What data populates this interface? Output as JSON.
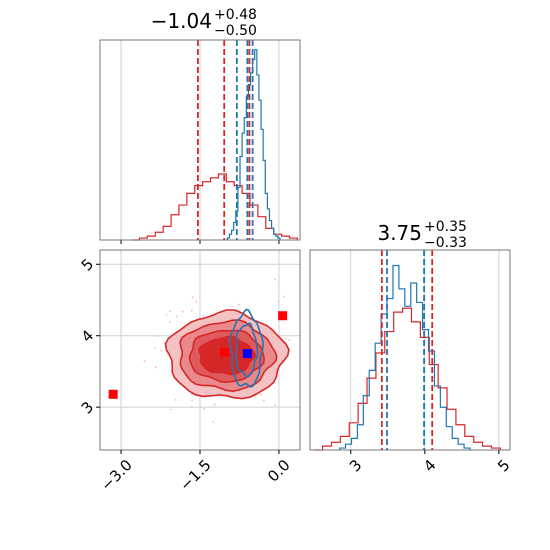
{
  "chart_data": [
    {
      "panel": "marginal-a",
      "type": "histogram",
      "title": {
        "median": "−1.04",
        "plus": "+0.48",
        "minus": "−0.50"
      },
      "grid": true,
      "series": [
        {
          "color": "#1f77b4",
          "bins": [
            -0.98,
            -0.94,
            -0.9,
            -0.86,
            -0.82,
            -0.78,
            -0.74,
            -0.7,
            -0.66,
            -0.62,
            -0.58,
            -0.54,
            -0.5,
            -0.46,
            -0.42,
            -0.38,
            -0.34,
            -0.3,
            -0.26,
            -0.22,
            -0.18,
            -0.14,
            -0.1,
            -0.06,
            -0.02,
            0.02
          ],
          "counts": [
            0.01,
            0.03,
            0.05,
            0.09,
            0.15,
            0.27,
            0.43,
            0.55,
            0.63,
            0.74,
            0.8,
            0.86,
            0.93,
            0.98,
            0.85,
            0.72,
            0.57,
            0.41,
            0.24,
            0.16,
            0.1,
            0.06,
            0.03,
            0.02,
            0.01
          ],
          "quantile_lines": [
            -0.8,
            -0.6,
            -0.5
          ]
        },
        {
          "color": "#d62728",
          "bins": [
            -2.8,
            -2.65,
            -2.5,
            -2.35,
            -2.2,
            -2.05,
            -1.9,
            -1.75,
            -1.6,
            -1.45,
            -1.3,
            -1.15,
            -1.0,
            -0.85,
            -0.7,
            -0.55,
            -0.4,
            -0.25,
            -0.1,
            0.05,
            0.2,
            0.35
          ],
          "counts": [
            0.0,
            0.01,
            0.02,
            0.04,
            0.07,
            0.13,
            0.18,
            0.24,
            0.28,
            0.3,
            0.32,
            0.34,
            0.3,
            0.28,
            0.24,
            0.18,
            0.12,
            0.06,
            0.03,
            0.02,
            0.01
          ],
          "quantile_lines": [
            -1.54,
            -1.04,
            -0.56
          ]
        }
      ],
      "xlim": [
        -3.4,
        0.4
      ],
      "ylim": [
        0,
        1.03
      ]
    },
    {
      "panel": "joint",
      "type": "contour",
      "grid": true,
      "xlim": [
        -3.4,
        0.4
      ],
      "ylim": [
        2.4,
        5.2
      ],
      "x_ticks": [
        "−3.0",
        "−1.5",
        "0.0"
      ],
      "y_ticks": [
        "3",
        "4",
        "5"
      ],
      "red_points": [
        [
          -3.15,
          3.18
        ],
        [
          -1.03,
          3.77
        ],
        [
          0.07,
          4.28
        ]
      ],
      "blue_point": [
        -0.6,
        3.75
      ]
    },
    {
      "panel": "marginal-b",
      "type": "histogram",
      "title": {
        "median": "3.75",
        "plus": "+0.35",
        "minus": "−0.33"
      },
      "grid": true,
      "x_ticks": [
        "3",
        "4",
        "5"
      ],
      "series": [
        {
          "color": "#1f77b4",
          "bins": [
            2.85,
            2.93,
            3.01,
            3.09,
            3.17,
            3.25,
            3.33,
            3.41,
            3.49,
            3.57,
            3.65,
            3.73,
            3.81,
            3.89,
            3.97,
            4.05,
            4.13,
            4.21,
            4.29,
            4.37,
            4.45,
            4.53,
            4.61
          ],
          "counts": [
            0.01,
            0.03,
            0.06,
            0.13,
            0.28,
            0.41,
            0.55,
            0.7,
            0.78,
            0.95,
            0.83,
            0.74,
            0.86,
            0.76,
            0.62,
            0.51,
            0.33,
            0.22,
            0.12,
            0.06,
            0.03,
            0.01
          ],
          "quantile_lines": [
            3.49,
            3.99
          ]
        },
        {
          "color": "#d62728",
          "bins": [
            2.5,
            2.62,
            2.74,
            2.86,
            2.98,
            3.1,
            3.22,
            3.34,
            3.46,
            3.58,
            3.7,
            3.82,
            3.94,
            4.06,
            4.18,
            4.3,
            4.42,
            4.54,
            4.66,
            4.78,
            4.9,
            5.02
          ],
          "counts": [
            0.0,
            0.02,
            0.04,
            0.07,
            0.14,
            0.24,
            0.37,
            0.5,
            0.61,
            0.71,
            0.73,
            0.66,
            0.58,
            0.44,
            0.32,
            0.21,
            0.13,
            0.07,
            0.04,
            0.02,
            0.01
          ],
          "quantile_lines": [
            3.42,
            4.1
          ]
        }
      ],
      "xlim": [
        2.45,
        5.15
      ],
      "ylim": [
        0,
        1.03
      ]
    }
  ]
}
